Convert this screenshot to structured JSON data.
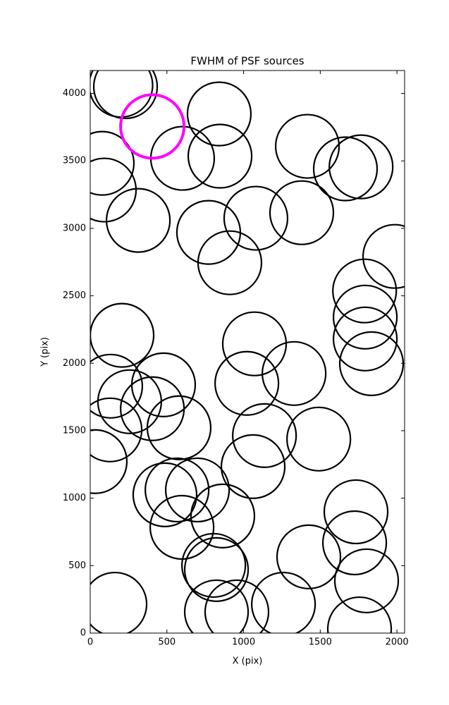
{
  "chart_data": {
    "type": "scatter",
    "title": "FWHM of PSF sources",
    "x_label": "X (pix)",
    "y_label": "Y (pix)",
    "xlim": [
      0,
      2050
    ],
    "ylim": [
      0,
      4170
    ],
    "xticks": [
      0,
      500,
      1000,
      1500,
      2000
    ],
    "yticks": [
      0,
      500,
      1000,
      1500,
      2000,
      2500,
      3000,
      3500,
      4000
    ],
    "series": [
      {
        "color": "#000000",
        "x": [
          200,
          230,
          841,
          602,
          846,
          78,
          92,
          313,
          772,
          910,
          1080,
          1379,
          1416,
          1664,
          1766,
          1986,
          1789,
          1793,
          1793,
          1834,
          207,
          1071,
          1329,
          1021,
          478,
          133,
          257,
          129,
          405,
          579,
          1136,
          1490,
          1062,
          32,
          487,
          566,
          699,
          864,
          598,
          805,
          823,
          1425,
          1733,
          1724,
          1802,
          1756,
          161,
          1260,
          823,
          956
        ],
        "values": [
          4060,
          4050,
          3848,
          3519,
          3535,
          3482,
          3284,
          3059,
          2970,
          2745,
          3075,
          3116,
          3608,
          3441,
          3456,
          2792,
          2536,
          2342,
          2180,
          1997,
          2207,
          2144,
          1924,
          1851,
          1840,
          1830,
          1715,
          1506,
          1663,
          1522,
          1464,
          1438,
          1234,
          1271,
          1025,
          1061,
          1061,
          868,
          784,
          502,
          471,
          565,
          899,
          669,
          387,
          31,
          214,
          214,
          157,
          157
        ]
      },
      {
        "color": "#ff00ff",
        "x": [
          405
        ],
        "values": [
          3755
        ]
      }
    ]
  }
}
